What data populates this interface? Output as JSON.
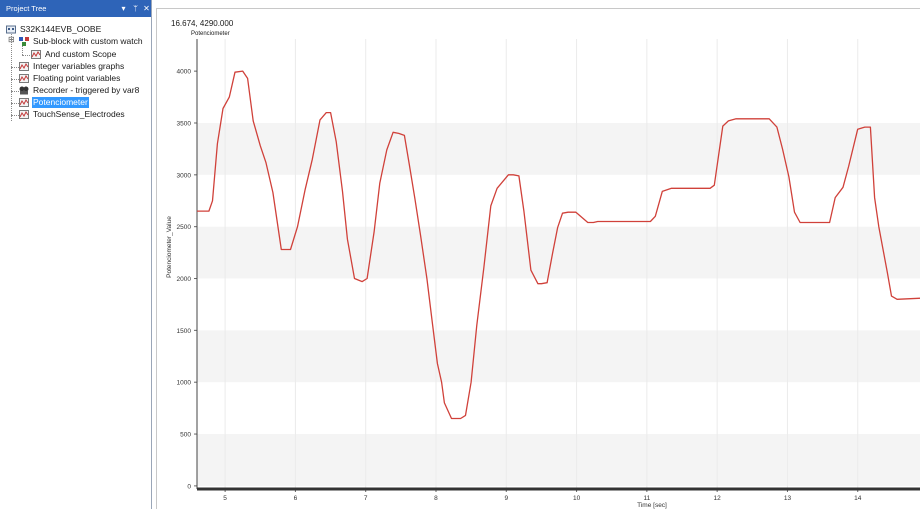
{
  "project_tree": {
    "title": "Project Tree",
    "controls": {
      "dropdown": "▾",
      "pin": "ᛘ",
      "close": "✕"
    },
    "items": [
      {
        "label": "S32K144EVB_OOBE",
        "icon": "project-icon",
        "selected": false
      },
      {
        "label": "Sub-block with custom watch",
        "icon": "subblock-icon",
        "selected": false
      },
      {
        "label": "And custom Scope",
        "icon": "scope-icon",
        "selected": false
      },
      {
        "label": "Integer variables graphs",
        "icon": "scope-icon",
        "selected": false
      },
      {
        "label": "Floating point variables",
        "icon": "scope-icon",
        "selected": false
      },
      {
        "label": "Recorder - triggered by var8",
        "icon": "recorder-icon",
        "selected": false
      },
      {
        "label": "Potenciometer",
        "icon": "scope-icon",
        "selected": true
      },
      {
        "label": "TouchSense_Electrodes",
        "icon": "scope-icon",
        "selected": false
      }
    ]
  },
  "chart_panel": {
    "cursor_readout": "16.674, 4290.000"
  },
  "chart_data": {
    "type": "line",
    "title": "Potenciometer",
    "xlabel": "Time [sec]",
    "ylabel": "Potenciometer_Value",
    "xlim": [
      4.6,
      14.9
    ],
    "ylim": [
      -30,
      4310
    ],
    "yticks": [
      0,
      500,
      1000,
      1500,
      2000,
      2500,
      3000,
      3500,
      4000
    ],
    "xticks": [
      5,
      6,
      7,
      8,
      9,
      10,
      11,
      12,
      13,
      14
    ],
    "grid": "horizontal bands",
    "line_color": "#d0413a",
    "series": [
      {
        "x": [
          4.6,
          4.77,
          4.82,
          4.89,
          4.97,
          5.06,
          5.14,
          5.25,
          5.32,
          5.4,
          5.5,
          5.58,
          5.68,
          5.8,
          5.88,
          5.93,
          6.03,
          6.14,
          6.24,
          6.35,
          6.44,
          6.5,
          6.58,
          6.67,
          6.74,
          6.84,
          6.95,
          7.02,
          7.12,
          7.2,
          7.3,
          7.39,
          7.47,
          7.55,
          7.62,
          7.7,
          7.78,
          7.87,
          7.95,
          8.02,
          8.08,
          8.12,
          8.22,
          8.28,
          8.35,
          8.42,
          8.5,
          8.58,
          8.68,
          8.78,
          8.87,
          9.03,
          9.1,
          9.18,
          9.25,
          9.35,
          9.45,
          9.5,
          9.58,
          9.66,
          9.73,
          9.8,
          9.88,
          9.92,
          9.99,
          10.16,
          10.24,
          10.3,
          11.05,
          11.12,
          11.22,
          11.35,
          11.4,
          11.5,
          11.58,
          11.65,
          11.73,
          11.83,
          11.9,
          11.96,
          12.08,
          12.16,
          12.27,
          12.55,
          12.74,
          12.85,
          12.93,
          13.02,
          13.1,
          13.18,
          13.24,
          13.35,
          13.41,
          13.5,
          13.6,
          13.68,
          13.79,
          13.87,
          14.0,
          14.1,
          14.18,
          14.24,
          14.3,
          14.42,
          14.48,
          14.56,
          14.9
        ],
        "y": [
          2650,
          2650,
          2750,
          3300,
          3640,
          3750,
          3990,
          4000,
          3930,
          3520,
          3280,
          3120,
          2830,
          2280,
          2280,
          2280,
          2500,
          2860,
          3150,
          3530,
          3600,
          3600,
          3320,
          2840,
          2380,
          2000,
          1970,
          2000,
          2450,
          2920,
          3240,
          3410,
          3400,
          3380,
          3100,
          2770,
          2420,
          2000,
          1560,
          1180,
          1000,
          800,
          650,
          650,
          650,
          680,
          1000,
          1550,
          2100,
          2700,
          2870,
          3000,
          3000,
          2990,
          2650,
          2080,
          1950,
          1950,
          1960,
          2250,
          2490,
          2630,
          2640,
          2640,
          2640,
          2540,
          2540,
          2550,
          2550,
          2600,
          2840,
          2870,
          2870,
          2870,
          2870,
          2870,
          2870,
          2870,
          2870,
          2900,
          3470,
          3520,
          3540,
          3540,
          3540,
          3460,
          3250,
          2980,
          2640,
          2540,
          2540,
          2540,
          2540,
          2540,
          2540,
          2780,
          2880,
          3080,
          3440,
          3460,
          3460,
          2780,
          2500,
          2060,
          1830,
          1800,
          1810
        ]
      }
    ]
  }
}
